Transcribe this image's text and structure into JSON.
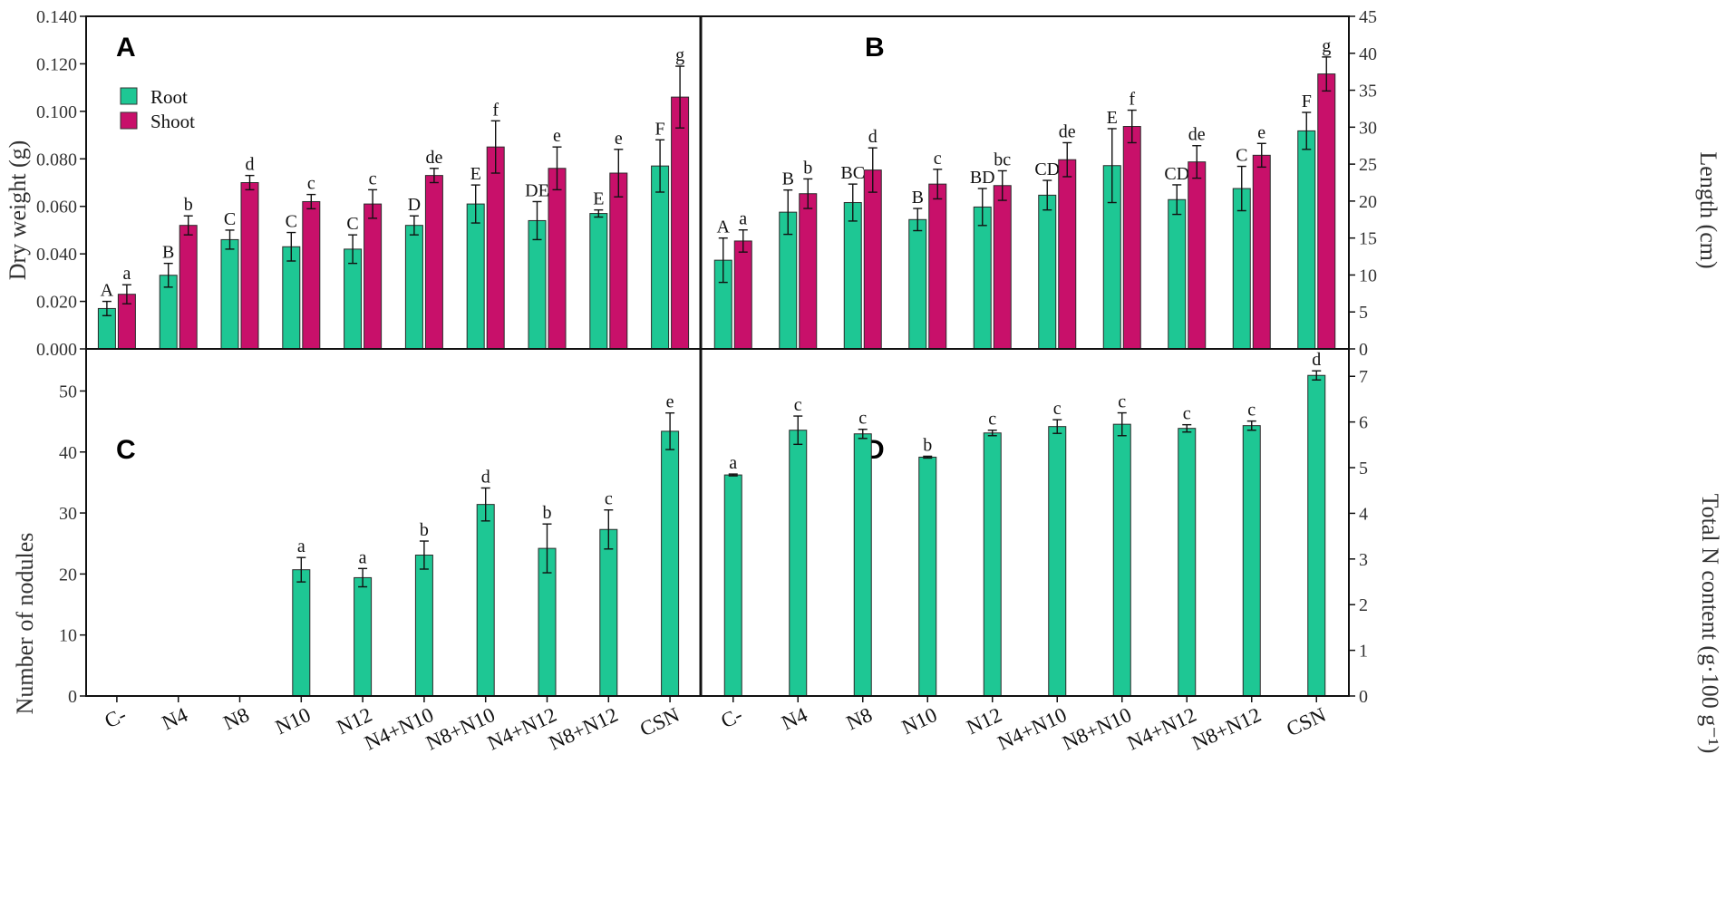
{
  "colors": {
    "root": "#1ec794",
    "shoot": "#c8106a",
    "frame": "#111111"
  },
  "legend": {
    "root": "Root",
    "shoot": "Shoot"
  },
  "categories": [
    "C-",
    "N4",
    "N8",
    "N10",
    "N12",
    "N4+N10",
    "N8+N10",
    "N4+N12",
    "N8+N12",
    "CSN"
  ],
  "chart_data": [
    {
      "panel": "A",
      "type": "bar",
      "ylabel": "Dry weight (g)",
      "ylim": [
        0,
        0.14
      ],
      "yticks": [
        "0.000",
        "0.020",
        "0.040",
        "0.060",
        "0.080",
        "0.100",
        "0.120",
        "0.140"
      ],
      "series": [
        {
          "name": "Root",
          "values": [
            0.017,
            0.031,
            0.046,
            0.043,
            0.042,
            0.052,
            0.061,
            0.054,
            0.057,
            0.077
          ],
          "errors": [
            0.003,
            0.005,
            0.004,
            0.006,
            0.006,
            0.004,
            0.008,
            0.008,
            0.0015,
            0.011
          ],
          "letters": [
            "A",
            "B",
            "C",
            "C",
            "C",
            "D",
            "E",
            "DE",
            "E",
            "F"
          ]
        },
        {
          "name": "Shoot",
          "values": [
            0.023,
            0.052,
            0.07,
            0.062,
            0.061,
            0.073,
            0.085,
            0.076,
            0.074,
            0.106
          ],
          "errors": [
            0.004,
            0.004,
            0.003,
            0.003,
            0.006,
            0.003,
            0.011,
            0.009,
            0.01,
            0.013
          ],
          "letters": [
            "a",
            "b",
            "d",
            "c",
            "c",
            "de",
            "f",
            "e",
            "e",
            "g"
          ]
        }
      ]
    },
    {
      "panel": "B",
      "type": "bar",
      "ylabel": "Length (cm)",
      "ylim": [
        0,
        45
      ],
      "yticks": [
        "0",
        "5",
        "10",
        "15",
        "20",
        "25",
        "30",
        "35",
        "40",
        "45"
      ],
      "series": [
        {
          "name": "Root",
          "values": [
            12,
            18.5,
            19.8,
            17.5,
            19.2,
            20.8,
            24.8,
            20.2,
            21.7,
            29.5
          ],
          "errors": [
            3,
            3,
            2.5,
            1.5,
            2.5,
            2,
            5,
            2,
            3,
            2.5
          ],
          "letters": [
            "A",
            "B",
            "BC",
            "B",
            "BD",
            "CD",
            "E",
            "CD",
            "C",
            "F"
          ]
        },
        {
          "name": "Shoot",
          "values": [
            14.6,
            21,
            24.2,
            22.3,
            22.1,
            25.6,
            30.1,
            25.3,
            26.2,
            37.2
          ],
          "errors": [
            1.5,
            2,
            3,
            2,
            2,
            2.3,
            2.2,
            2.2,
            1.6,
            2.3
          ],
          "letters": [
            "a",
            "b",
            "d",
            "c",
            "bc",
            "de",
            "f",
            "de",
            "e",
            "g"
          ]
        }
      ]
    },
    {
      "panel": "C",
      "type": "bar",
      "ylabel": "Number of nodules",
      "ylim": [
        0,
        56.9
      ],
      "yticks": [
        "0",
        "10",
        "20",
        "30",
        "40",
        "50"
      ],
      "series": [
        {
          "name": "Root",
          "values": [
            null,
            null,
            null,
            20.7,
            19.4,
            23.1,
            31.4,
            24.2,
            27.3,
            43.4
          ],
          "errors": [
            null,
            null,
            null,
            2,
            1.5,
            2.3,
            2.7,
            4,
            3.2,
            3
          ],
          "letters": [
            "",
            "",
            "",
            "a",
            "a",
            "b",
            "d",
            "b",
            "c",
            "e"
          ]
        }
      ]
    },
    {
      "panel": "D",
      "type": "bar",
      "ylabel": "Total N content (g·100 g⁻¹)",
      "ylim": [
        0,
        7.6
      ],
      "yticks": [
        "0",
        "1",
        "2",
        "3",
        "4",
        "5",
        "6",
        "7"
      ],
      "series": [
        {
          "name": "Root",
          "values": [
            4.84,
            5.82,
            5.74,
            5.23,
            5.76,
            5.9,
            5.95,
            5.86,
            5.92,
            7.02
          ],
          "errors": [
            0.02,
            0.31,
            0.1,
            0.02,
            0.06,
            0.15,
            0.25,
            0.08,
            0.1,
            0.1
          ],
          "letters": [
            "a",
            "c",
            "c",
            "b",
            "c",
            "c",
            "c",
            "c",
            "c",
            "d"
          ]
        }
      ]
    }
  ]
}
